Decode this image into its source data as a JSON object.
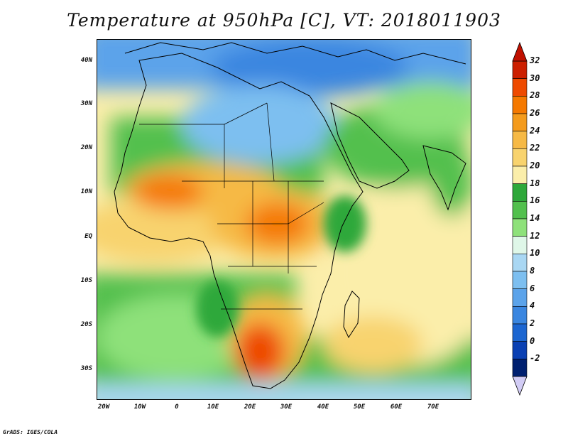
{
  "title": "Temperature at 950hPa [C], VT: 2018011903",
  "map": {
    "lat_labels": [
      "40N",
      "30N",
      "20N",
      "10N",
      "EQ",
      "10S",
      "20S",
      "30S"
    ],
    "lon_labels": [
      "20W",
      "10W",
      "0",
      "10E",
      "20E",
      "30E",
      "40E",
      "50E",
      "60E",
      "70E"
    ]
  },
  "colorbar": {
    "labels": [
      "32",
      "30",
      "28",
      "26",
      "24",
      "22",
      "20",
      "18",
      "16",
      "14",
      "12",
      "10",
      "8",
      "6",
      "4",
      "2",
      "0",
      "-2"
    ],
    "colors": [
      "#cc1f00",
      "#ee4a00",
      "#f57900",
      "#f49b1c",
      "#f6b945",
      "#f8d36e",
      "#fbeeaa",
      "#2ea83a",
      "#52c04d",
      "#8ee17a",
      "#dff7e8",
      "#a9d7f3",
      "#7dbff0",
      "#5ba3ea",
      "#3a86e0",
      "#1c66d1",
      "#0a40b3",
      "#002070"
    ],
    "arrow_top_color": "#c01000",
    "arrow_bottom_color": "#d2ccf5"
  },
  "credit": "GrADS: IGES/COLA"
}
